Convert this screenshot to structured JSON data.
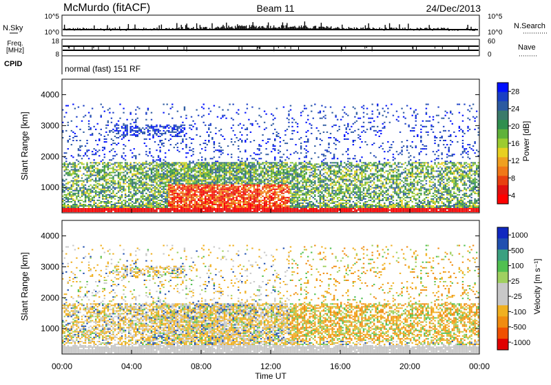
{
  "header": {
    "station": "McMurdo (fitACF)",
    "beam": "Beam 11",
    "date": "24/Dec/2013"
  },
  "status_panel": {
    "nsky_label": "N.Sky",
    "nsky_ticks": [
      "10^5",
      "10^0"
    ],
    "nsearch_label": "N.Search",
    "nsearch_ticks": [
      "10^5",
      "10^0"
    ],
    "freq_label_1": "Freq.",
    "freq_label_2": "[MHz]",
    "freq_ticks": [
      "18",
      "8"
    ],
    "nave_label": "Nave",
    "nave_ticks": [
      "60",
      "0"
    ],
    "cpid_label": "CPID",
    "cpid_text": "normal (fast) 151 RF"
  },
  "colors": {
    "power_scale": [
      "#0010ff",
      "#1a3fc4",
      "#2c5aa0",
      "#3a7a6a",
      "#2f8f4e",
      "#5fb23a",
      "#9ccc30",
      "#e8d020",
      "#f0a020",
      "#f07818",
      "#e84010",
      "#e01010",
      "#ff0000"
    ],
    "velocity_scale": [
      "#e00000",
      "#f05000",
      "#f08c10",
      "#f0b020",
      "#c8c8c8",
      "#c8c8c8",
      "#a0d060",
      "#50c050",
      "#3aa080",
      "#2050b0",
      "#1028c0"
    ]
  },
  "chart_data": [
    {
      "type": "heatmap",
      "title": "",
      "xlabel": "",
      "ylabel": "Slant Range [km]",
      "x_ticks": [
        "00:00",
        "04:00",
        "08:00",
        "12:00",
        "16:00",
        "20:00",
        "00:00"
      ],
      "y_ticks": [
        "1000",
        "2000",
        "3000",
        "4000"
      ],
      "x_range_hours": [
        0,
        24
      ],
      "y_range_km": [
        180,
        4500
      ],
      "colorbar": {
        "label": "Power [dB]",
        "ticks": [
          "28",
          "24",
          "20",
          "16",
          "12",
          "8",
          "4"
        ],
        "range": [
          0,
          30
        ]
      }
    },
    {
      "type": "heatmap",
      "title": "",
      "xlabel": "Time UT",
      "ylabel": "Slant Range [km]",
      "x_ticks": [
        "00:00",
        "04:00",
        "08:00",
        "12:00",
        "16:00",
        "20:00",
        "00:00"
      ],
      "y_ticks": [
        "1000",
        "2000",
        "3000",
        "4000"
      ],
      "x_range_hours": [
        0,
        24
      ],
      "y_range_km": [
        180,
        4500
      ],
      "colorbar": {
        "label": "Velocity [m s⁻¹]",
        "ticks": [
          "1000",
          "500",
          "100",
          "25",
          "-25",
          "-100",
          "-500",
          "-1000"
        ]
      }
    }
  ]
}
